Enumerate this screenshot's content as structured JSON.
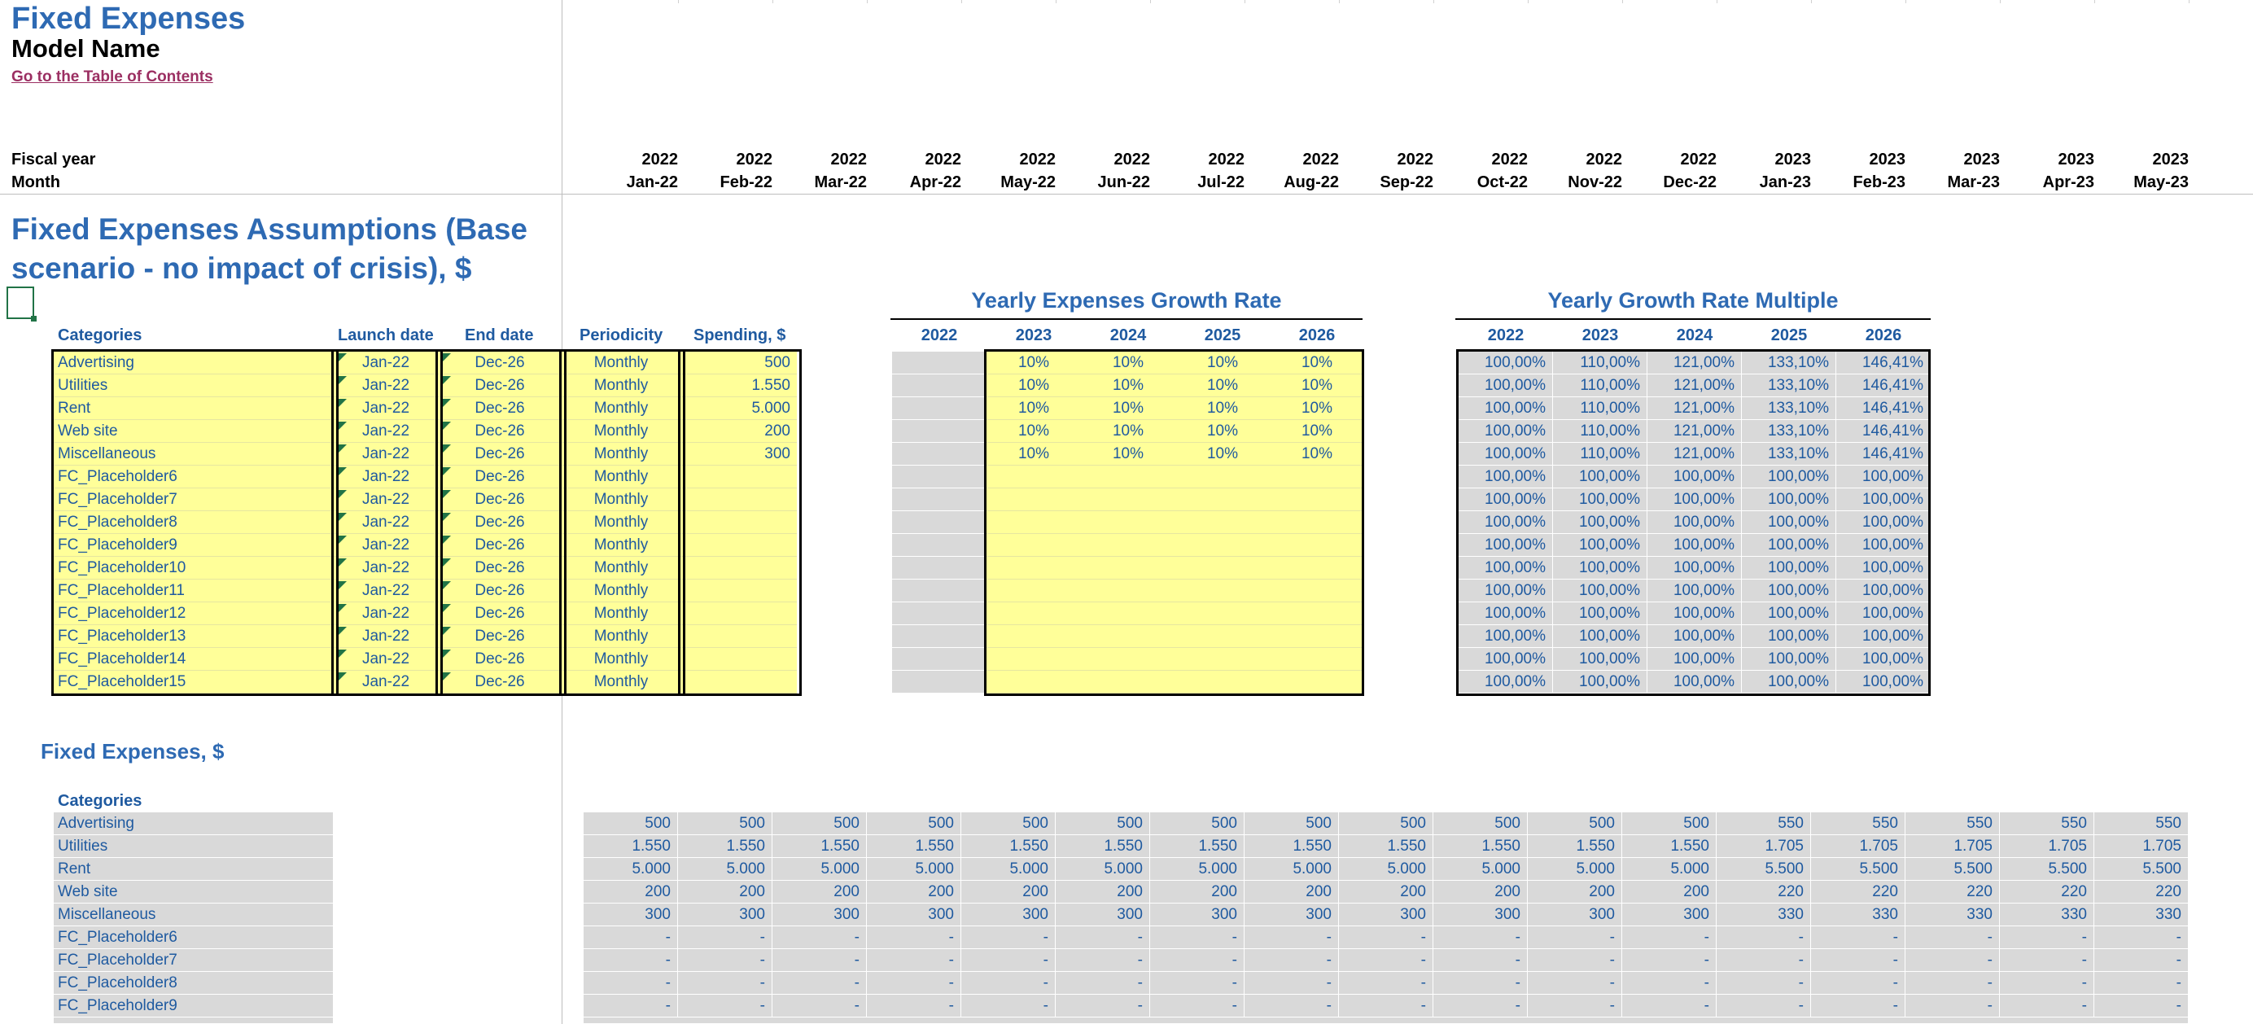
{
  "header": {
    "title": "Fixed Expenses",
    "model_name": "Model Name",
    "toc_link": "Go to the Table of Contents",
    "fiscal_year_label": "Fiscal year",
    "month_label": "Month"
  },
  "timeline": {
    "years": [
      "2022",
      "2022",
      "2022",
      "2022",
      "2022",
      "2022",
      "2022",
      "2022",
      "2022",
      "2022",
      "2022",
      "2022",
      "2023",
      "2023",
      "2023",
      "2023",
      "2023"
    ],
    "months": [
      "Jan-22",
      "Feb-22",
      "Mar-22",
      "Apr-22",
      "May-22",
      "Jun-22",
      "Jul-22",
      "Aug-22",
      "Sep-22",
      "Oct-22",
      "Nov-22",
      "Dec-22",
      "Jan-23",
      "Feb-23",
      "Mar-23",
      "Apr-23",
      "May-23"
    ]
  },
  "assumptions": {
    "title": "Fixed Expenses Assumptions (Base scenario - no impact of crisis), $",
    "columns": {
      "categories": "Categories",
      "launch": "Launch date",
      "end": "End date",
      "periodicity": "Periodicity",
      "spending": "Spending, $"
    },
    "rows": [
      {
        "name": "Advertising",
        "launch": "Jan-22",
        "end": "Dec-26",
        "periodicity": "Monthly",
        "spending": "500"
      },
      {
        "name": "Utilities",
        "launch": "Jan-22",
        "end": "Dec-26",
        "periodicity": "Monthly",
        "spending": "1.550"
      },
      {
        "name": "Rent",
        "launch": "Jan-22",
        "end": "Dec-26",
        "periodicity": "Monthly",
        "spending": "5.000"
      },
      {
        "name": "Web site",
        "launch": "Jan-22",
        "end": "Dec-26",
        "periodicity": "Monthly",
        "spending": "200"
      },
      {
        "name": "Miscellaneous",
        "launch": "Jan-22",
        "end": "Dec-26",
        "periodicity": "Monthly",
        "spending": "300"
      },
      {
        "name": "FC_Placeholder6",
        "launch": "Jan-22",
        "end": "Dec-26",
        "periodicity": "Monthly",
        "spending": ""
      },
      {
        "name": "FC_Placeholder7",
        "launch": "Jan-22",
        "end": "Dec-26",
        "periodicity": "Monthly",
        "spending": ""
      },
      {
        "name": "FC_Placeholder8",
        "launch": "Jan-22",
        "end": "Dec-26",
        "periodicity": "Monthly",
        "spending": ""
      },
      {
        "name": "FC_Placeholder9",
        "launch": "Jan-22",
        "end": "Dec-26",
        "periodicity": "Monthly",
        "spending": ""
      },
      {
        "name": "FC_Placeholder10",
        "launch": "Jan-22",
        "end": "Dec-26",
        "periodicity": "Monthly",
        "spending": ""
      },
      {
        "name": "FC_Placeholder11",
        "launch": "Jan-22",
        "end": "Dec-26",
        "periodicity": "Monthly",
        "spending": ""
      },
      {
        "name": "FC_Placeholder12",
        "launch": "Jan-22",
        "end": "Dec-26",
        "periodicity": "Monthly",
        "spending": ""
      },
      {
        "name": "FC_Placeholder13",
        "launch": "Jan-22",
        "end": "Dec-26",
        "periodicity": "Monthly",
        "spending": ""
      },
      {
        "name": "FC_Placeholder14",
        "launch": "Jan-22",
        "end": "Dec-26",
        "periodicity": "Monthly",
        "spending": ""
      },
      {
        "name": "FC_Placeholder15",
        "launch": "Jan-22",
        "end": "Dec-26",
        "periodicity": "Monthly",
        "spending": ""
      }
    ]
  },
  "growth_rate": {
    "title": "Yearly Expenses Growth Rate",
    "years": [
      "2022",
      "2023",
      "2024",
      "2025",
      "2026"
    ],
    "rows": [
      [
        "",
        "10%",
        "10%",
        "10%",
        "10%"
      ],
      [
        "",
        "10%",
        "10%",
        "10%",
        "10%"
      ],
      [
        "",
        "10%",
        "10%",
        "10%",
        "10%"
      ],
      [
        "",
        "10%",
        "10%",
        "10%",
        "10%"
      ],
      [
        "",
        "10%",
        "10%",
        "10%",
        "10%"
      ],
      [
        "",
        "",
        "",
        "",
        ""
      ],
      [
        "",
        "",
        "",
        "",
        ""
      ],
      [
        "",
        "",
        "",
        "",
        ""
      ],
      [
        "",
        "",
        "",
        "",
        ""
      ],
      [
        "",
        "",
        "",
        "",
        ""
      ],
      [
        "",
        "",
        "",
        "",
        ""
      ],
      [
        "",
        "",
        "",
        "",
        ""
      ],
      [
        "",
        "",
        "",
        "",
        ""
      ],
      [
        "",
        "",
        "",
        "",
        ""
      ],
      [
        "",
        "",
        "",
        "",
        ""
      ]
    ]
  },
  "growth_multiple": {
    "title": "Yearly Growth Rate Multiple",
    "years": [
      "2022",
      "2023",
      "2024",
      "2025",
      "2026"
    ],
    "rows": [
      [
        "100,00%",
        "110,00%",
        "121,00%",
        "133,10%",
        "146,41%"
      ],
      [
        "100,00%",
        "110,00%",
        "121,00%",
        "133,10%",
        "146,41%"
      ],
      [
        "100,00%",
        "110,00%",
        "121,00%",
        "133,10%",
        "146,41%"
      ],
      [
        "100,00%",
        "110,00%",
        "121,00%",
        "133,10%",
        "146,41%"
      ],
      [
        "100,00%",
        "110,00%",
        "121,00%",
        "133,10%",
        "146,41%"
      ],
      [
        "100,00%",
        "100,00%",
        "100,00%",
        "100,00%",
        "100,00%"
      ],
      [
        "100,00%",
        "100,00%",
        "100,00%",
        "100,00%",
        "100,00%"
      ],
      [
        "100,00%",
        "100,00%",
        "100,00%",
        "100,00%",
        "100,00%"
      ],
      [
        "100,00%",
        "100,00%",
        "100,00%",
        "100,00%",
        "100,00%"
      ],
      [
        "100,00%",
        "100,00%",
        "100,00%",
        "100,00%",
        "100,00%"
      ],
      [
        "100,00%",
        "100,00%",
        "100,00%",
        "100,00%",
        "100,00%"
      ],
      [
        "100,00%",
        "100,00%",
        "100,00%",
        "100,00%",
        "100,00%"
      ],
      [
        "100,00%",
        "100,00%",
        "100,00%",
        "100,00%",
        "100,00%"
      ],
      [
        "100,00%",
        "100,00%",
        "100,00%",
        "100,00%",
        "100,00%"
      ],
      [
        "100,00%",
        "100,00%",
        "100,00%",
        "100,00%",
        "100,00%"
      ]
    ]
  },
  "fixed_expenses": {
    "title": "Fixed Expenses, $",
    "categories_label": "Categories",
    "rows": [
      {
        "name": "Advertising",
        "values": [
          "500",
          "500",
          "500",
          "500",
          "500",
          "500",
          "500",
          "500",
          "500",
          "500",
          "500",
          "500",
          "550",
          "550",
          "550",
          "550",
          "550"
        ]
      },
      {
        "name": "Utilities",
        "values": [
          "1.550",
          "1.550",
          "1.550",
          "1.550",
          "1.550",
          "1.550",
          "1.550",
          "1.550",
          "1.550",
          "1.550",
          "1.550",
          "1.550",
          "1.705",
          "1.705",
          "1.705",
          "1.705",
          "1.705"
        ]
      },
      {
        "name": "Rent",
        "values": [
          "5.000",
          "5.000",
          "5.000",
          "5.000",
          "5.000",
          "5.000",
          "5.000",
          "5.000",
          "5.000",
          "5.000",
          "5.000",
          "5.000",
          "5.500",
          "5.500",
          "5.500",
          "5.500",
          "5.500"
        ]
      },
      {
        "name": "Web site",
        "values": [
          "200",
          "200",
          "200",
          "200",
          "200",
          "200",
          "200",
          "200",
          "200",
          "200",
          "200",
          "200",
          "220",
          "220",
          "220",
          "220",
          "220"
        ]
      },
      {
        "name": "Miscellaneous",
        "values": [
          "300",
          "300",
          "300",
          "300",
          "300",
          "300",
          "300",
          "300",
          "300",
          "300",
          "300",
          "300",
          "330",
          "330",
          "330",
          "330",
          "330"
        ]
      },
      {
        "name": "FC_Placeholder6",
        "values": [
          "-",
          "-",
          "-",
          "-",
          "-",
          "-",
          "-",
          "-",
          "-",
          "-",
          "-",
          "-",
          "-",
          "-",
          "-",
          "-",
          "-"
        ]
      },
      {
        "name": "FC_Placeholder7",
        "values": [
          "-",
          "-",
          "-",
          "-",
          "-",
          "-",
          "-",
          "-",
          "-",
          "-",
          "-",
          "-",
          "-",
          "-",
          "-",
          "-",
          "-"
        ]
      },
      {
        "name": "FC_Placeholder8",
        "values": [
          "-",
          "-",
          "-",
          "-",
          "-",
          "-",
          "-",
          "-",
          "-",
          "-",
          "-",
          "-",
          "-",
          "-",
          "-",
          "-",
          "-"
        ]
      },
      {
        "name": "FC_Placeholder9",
        "values": [
          "-",
          "-",
          "-",
          "-",
          "-",
          "-",
          "-",
          "-",
          "-",
          "-",
          "-",
          "-",
          "-",
          "-",
          "-",
          "-",
          "-"
        ]
      }
    ]
  }
}
